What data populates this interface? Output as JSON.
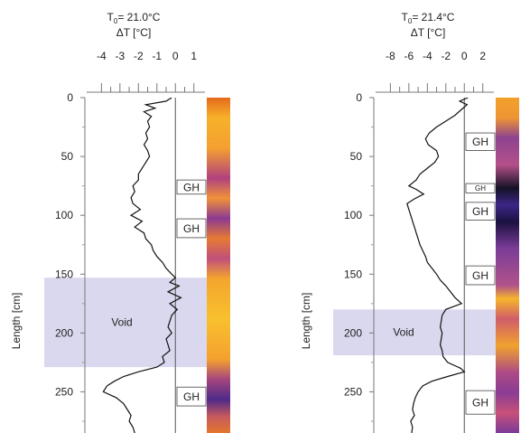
{
  "chart_data": [
    {
      "type": "line",
      "title_t0": "21.0°C",
      "title_delta": "ΔT [°C]",
      "xlabel": "",
      "ylabel": "Length [cm]",
      "xlim": [
        -4.8,
        1.6
      ],
      "ylim": [
        0,
        285
      ],
      "x_ticks": [
        -4,
        -3,
        -2,
        -1,
        0,
        1
      ],
      "x_tick_labels": [
        "-4",
        "-3",
        "-2",
        "-1",
        "0",
        "1"
      ],
      "y_ticks": [
        0,
        50,
        100,
        150,
        200,
        250
      ],
      "y_tick_labels": [
        "0",
        "50",
        "100",
        "150",
        "200",
        "250"
      ],
      "void": {
        "label": "Void",
        "range": [
          153,
          229
        ]
      },
      "gh_zones": [
        {
          "label": "GH",
          "range": [
            70,
            82
          ]
        },
        {
          "label": "GH",
          "range": [
            103,
            119
          ]
        },
        {
          "label": "GH",
          "range": [
            246,
            262
          ]
        }
      ],
      "series": [
        {
          "y": [
            0,
            3,
            6,
            9,
            12,
            16,
            20,
            25,
            30,
            35,
            40,
            45,
            50,
            55,
            60,
            65,
            70,
            75,
            80,
            85,
            90,
            95,
            100,
            105,
            110,
            115,
            120,
            125,
            130,
            135,
            140,
            145,
            150,
            153,
            157,
            160,
            165,
            170,
            175,
            180,
            185,
            190,
            195,
            200,
            205,
            210,
            215,
            220,
            225,
            229,
            233,
            237,
            241,
            245,
            250,
            255,
            260,
            265,
            270,
            275,
            280,
            285
          ],
          "x": [
            -0.2,
            -0.5,
            -1.6,
            -1.1,
            -1.7,
            -1.3,
            -1.5,
            -1.4,
            -1.6,
            -1.5,
            -1.7,
            -1.5,
            -1.4,
            -1.6,
            -1.8,
            -2.0,
            -2.0,
            -2.3,
            -2.2,
            -2.4,
            -2.3,
            -1.9,
            -2.4,
            -1.8,
            -2.2,
            -1.7,
            -1.6,
            -1.3,
            -1.2,
            -1.0,
            -0.7,
            -0.5,
            -0.2,
            0.0,
            -0.3,
            0.2,
            -0.4,
            0.3,
            -0.3,
            0.1,
            -0.2,
            -0.3,
            -0.4,
            -0.2,
            -0.5,
            -0.4,
            -0.3,
            -0.7,
            -0.6,
            -1.0,
            -2.0,
            -2.8,
            -3.3,
            -3.7,
            -3.9,
            -3.2,
            -2.8,
            -2.6,
            -2.4,
            -2.5,
            -2.3,
            -2.2
          ]
        }
      ]
    },
    {
      "type": "line",
      "title_t0": "21.4°C",
      "title_delta": "ΔT [°C]",
      "xlabel": "",
      "ylabel": "Length [cm]",
      "xlim": [
        -9.6,
        3.2
      ],
      "ylim": [
        0,
        285
      ],
      "x_ticks": [
        -8,
        -6,
        -4,
        -2,
        0,
        2
      ],
      "x_tick_labels": [
        "-8",
        "-6",
        "-4",
        "-2",
        "0",
        "2"
      ],
      "y_ticks": [
        0,
        50,
        100,
        150,
        200,
        250
      ],
      "y_tick_labels": [
        "0",
        "50",
        "100",
        "150",
        "200",
        "250"
      ],
      "void": {
        "label": "Void",
        "range": [
          180,
          219
        ]
      },
      "gh_zones": [
        {
          "label": "GH",
          "range": [
            30,
            45
          ]
        },
        {
          "label": "GH",
          "range": [
            73,
            81
          ]
        },
        {
          "label": "GH",
          "range": [
            89,
            104
          ]
        },
        {
          "label": "GH",
          "range": [
            143,
            159
          ]
        },
        {
          "label": "GH",
          "range": [
            249,
            269
          ]
        }
      ],
      "series": [
        {
          "y": [
            0,
            3,
            6,
            10,
            15,
            20,
            25,
            30,
            35,
            40,
            45,
            50,
            55,
            60,
            65,
            70,
            75,
            78,
            82,
            86,
            90,
            95,
            100,
            105,
            110,
            115,
            120,
            125,
            130,
            135,
            140,
            145,
            150,
            155,
            160,
            165,
            170,
            175,
            180,
            185,
            190,
            195,
            200,
            205,
            210,
            215,
            220,
            225,
            230,
            233,
            237,
            241,
            245,
            250,
            255,
            260,
            265,
            270,
            275,
            280,
            285
          ],
          "x": [
            0.4,
            -0.5,
            0.3,
            -0.3,
            -1.0,
            -2.0,
            -3.0,
            -3.8,
            -4.2,
            -3.9,
            -3.0,
            -2.8,
            -3.2,
            -4.0,
            -4.8,
            -5.2,
            -6.0,
            -5.2,
            -4.4,
            -5.4,
            -6.2,
            -6.0,
            -5.8,
            -5.6,
            -5.4,
            -5.2,
            -5.0,
            -4.8,
            -4.5,
            -4.2,
            -4.0,
            -3.5,
            -3.0,
            -2.6,
            -2.0,
            -1.5,
            -1.0,
            -0.3,
            -2.0,
            -2.4,
            -2.5,
            -2.6,
            -2.4,
            -2.5,
            -2.6,
            -2.4,
            -2.3,
            -1.8,
            -0.4,
            0.0,
            -1.8,
            -3.5,
            -4.5,
            -5.0,
            -5.3,
            -5.5,
            -5.6,
            -5.4,
            -5.8,
            -5.6,
            -5.7
          ]
        }
      ]
    }
  ]
}
